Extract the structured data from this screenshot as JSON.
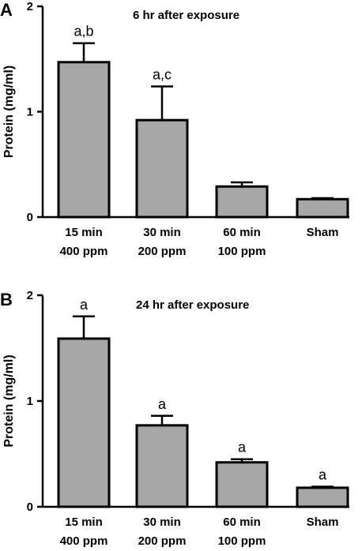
{
  "colors": {
    "bar_fill": "#a6a6a6",
    "bar_stroke": "#000000"
  },
  "chart_data": [
    {
      "type": "bar",
      "panel": "A",
      "title": "6 hr after exposure",
      "ylabel": "Protein (mg/ml)",
      "ylim": [
        0,
        2
      ],
      "yticks": [
        "0",
        "1",
        "2"
      ],
      "categories": [
        [
          "15 min",
          "400 ppm"
        ],
        [
          "30 min",
          "200 ppm"
        ],
        [
          "60 min",
          "100 ppm"
        ],
        [
          "Sham"
        ]
      ],
      "values": [
        1.47,
        0.92,
        0.29,
        0.17
      ],
      "errors": [
        0.18,
        0.32,
        0.04,
        0.01
      ],
      "annotations": [
        "a,b",
        "a,c",
        "",
        ""
      ]
    },
    {
      "type": "bar",
      "panel": "B",
      "title": "24 hr after exposure",
      "ylabel": "Protein (mg/ml)",
      "ylim": [
        0,
        2
      ],
      "yticks": [
        "0",
        "1",
        "2"
      ],
      "categories": [
        [
          "15 min",
          "400 ppm"
        ],
        [
          "30 min",
          "200 ppm"
        ],
        [
          "60 min",
          "100 ppm"
        ],
        [
          "Sham"
        ]
      ],
      "values": [
        1.59,
        0.77,
        0.42,
        0.18
      ],
      "errors": [
        0.21,
        0.09,
        0.03,
        0.01
      ],
      "annotations": [
        "a",
        "a",
        "a",
        "a"
      ]
    }
  ]
}
